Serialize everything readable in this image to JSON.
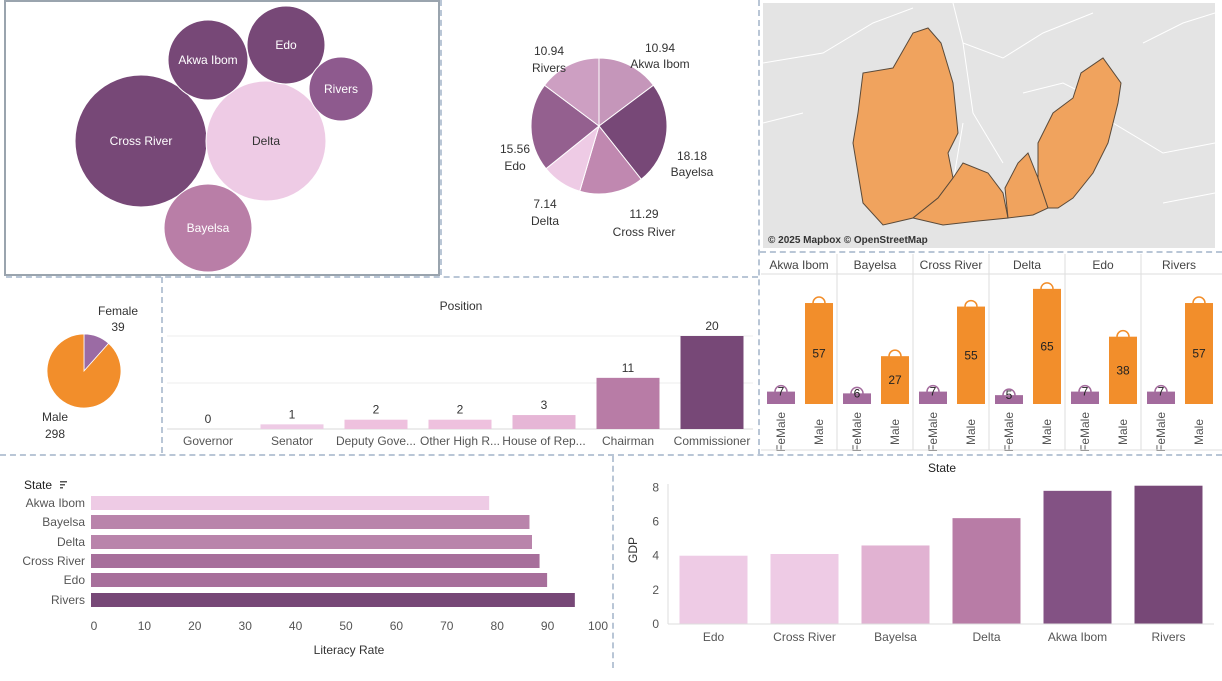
{
  "bubble_chart": {
    "states": [
      {
        "name": "Cross River",
        "color": "#774877",
        "label_color": "#ffffff"
      },
      {
        "name": "Delta",
        "color": "#eecbe5",
        "label_color": "#333333"
      },
      {
        "name": "Akwa Ibom",
        "color": "#774877",
        "label_color": "#ffffff"
      },
      {
        "name": "Edo",
        "color": "#774877",
        "label_color": "#ffffff"
      },
      {
        "name": "Rivers",
        "color": "#8e5a8e",
        "label_color": "#ffffff"
      },
      {
        "name": "Bayelsa",
        "color": "#b97ea7",
        "label_color": "#ffffff"
      }
    ]
  },
  "pie_states": {
    "slices": [
      {
        "name": "Akwa Ibom",
        "value": 10.94,
        "value_label": "10.94",
        "color": "#c596ba"
      },
      {
        "name": "Bayelsa",
        "value": 18.18,
        "value_label": "18.18",
        "color": "#774877"
      },
      {
        "name": "Cross River",
        "value": 11.29,
        "value_label": "11.29",
        "color": "#c088b0"
      },
      {
        "name": "Delta",
        "value": 7.14,
        "value_label": "7.14",
        "color": "#eecbe5"
      },
      {
        "name": "Edo",
        "value": 15.56,
        "value_label": "15.56",
        "color": "#94608f"
      },
      {
        "name": "Rivers",
        "value": 10.94,
        "value_label": "10.94",
        "color": "#cd9fc2"
      }
    ]
  },
  "map": {
    "attribution": "© 2025 Mapbox © OpenStreetMap",
    "highlight_color": "#f0a35e"
  },
  "gender_pie": {
    "slices": [
      {
        "name": "Female",
        "value": 39,
        "color": "#9b6ba4"
      },
      {
        "name": "Male",
        "value": 298,
        "color": "#f28e2b"
      }
    ]
  },
  "position_chart": {
    "title": "Position",
    "categories": [
      "Governor",
      "Senator",
      "Deputy Gove...",
      "Other High R...",
      "House of Rep...",
      "Chairman",
      "Commissioner"
    ],
    "values": [
      0,
      1,
      2,
      2,
      3,
      11,
      20
    ],
    "colors": [
      "#eecbe5",
      "#eecbe5",
      "#eec1de",
      "#eec1de",
      "#e6b6d6",
      "#b87ca6",
      "#774877"
    ]
  },
  "gender_by_state": {
    "states": [
      "Akwa Ibom",
      "Bayelsa",
      "Cross River",
      "Delta",
      "Edo",
      "Rivers"
    ],
    "genders": [
      "FeMale",
      "Male"
    ],
    "female_values": [
      7,
      6,
      7,
      5,
      7,
      7
    ],
    "male_values": [
      57,
      27,
      55,
      65,
      38,
      57
    ],
    "female_color": "#a36b9d",
    "male_color": "#f28e2b"
  },
  "literacy_chart": {
    "header": "State",
    "xlabel": "Literacy Rate",
    "categories": [
      "Akwa Ibom",
      "Bayelsa",
      "Delta",
      "Cross River",
      "Edo",
      "Rivers"
    ],
    "values": [
      79,
      87,
      87.5,
      89,
      90.5,
      96
    ],
    "colors": [
      "#eecbe5",
      "#b984ab",
      "#b984ab",
      "#a76f9b",
      "#a76f9b",
      "#774877"
    ],
    "xticks": [
      0,
      10,
      20,
      30,
      40,
      50,
      60,
      70,
      80,
      90,
      100
    ],
    "xlim": [
      0,
      100
    ]
  },
  "gdp_chart": {
    "title": "State",
    "ylabel": "GDP",
    "categories": [
      "Edo",
      "Cross River",
      "Bayelsa",
      "Delta",
      "Akwa Ibom",
      "Rivers"
    ],
    "values": [
      4.0,
      4.1,
      4.6,
      6.2,
      7.8,
      8.1
    ],
    "colors": [
      "#eecbe5",
      "#eecbe5",
      "#e1b2d2",
      "#b87ca6",
      "#835284",
      "#774877"
    ],
    "yticks": [
      0,
      2,
      4,
      6,
      8
    ],
    "ylim": [
      0,
      8.2
    ]
  },
  "chart_data": [
    {
      "type": "pie",
      "categories": [
        "Akwa Ibom",
        "Bayelsa",
        "Cross River",
        "Delta",
        "Edo",
        "Rivers"
      ],
      "values": [
        10.94,
        18.18,
        11.29,
        7.14,
        15.56,
        10.94
      ]
    },
    {
      "type": "pie",
      "categories": [
        "Female",
        "Male"
      ],
      "values": [
        39,
        298
      ]
    },
    {
      "type": "bar",
      "title": "Position",
      "categories": [
        "Governor",
        "Senator",
        "Deputy Gove...",
        "Other High R...",
        "House of Rep...",
        "Chairman",
        "Commissioner"
      ],
      "values": [
        0,
        1,
        2,
        2,
        3,
        11,
        20
      ]
    },
    {
      "type": "bar",
      "categories": [
        "Akwa Ibom",
        "Bayelsa",
        "Cross River",
        "Delta",
        "Edo",
        "Rivers"
      ],
      "series": [
        {
          "name": "FeMale",
          "values": [
            7,
            6,
            7,
            5,
            7,
            7
          ]
        },
        {
          "name": "Male",
          "values": [
            57,
            27,
            55,
            65,
            38,
            57
          ]
        }
      ]
    },
    {
      "type": "bar",
      "categories": [
        "Akwa Ibom",
        "Bayelsa",
        "Delta",
        "Cross River",
        "Edo",
        "Rivers"
      ],
      "values": [
        79,
        87,
        87.5,
        89,
        90.5,
        96
      ],
      "xlabel": "Literacy Rate",
      "xlim": [
        0,
        100
      ]
    },
    {
      "type": "bar",
      "title": "State",
      "categories": [
        "Edo",
        "Cross River",
        "Bayelsa",
        "Delta",
        "Akwa Ibom",
        "Rivers"
      ],
      "values": [
        4.0,
        4.1,
        4.6,
        6.2,
        7.8,
        8.1
      ],
      "ylabel": "GDP",
      "ylim": [
        0,
        8.2
      ]
    }
  ]
}
